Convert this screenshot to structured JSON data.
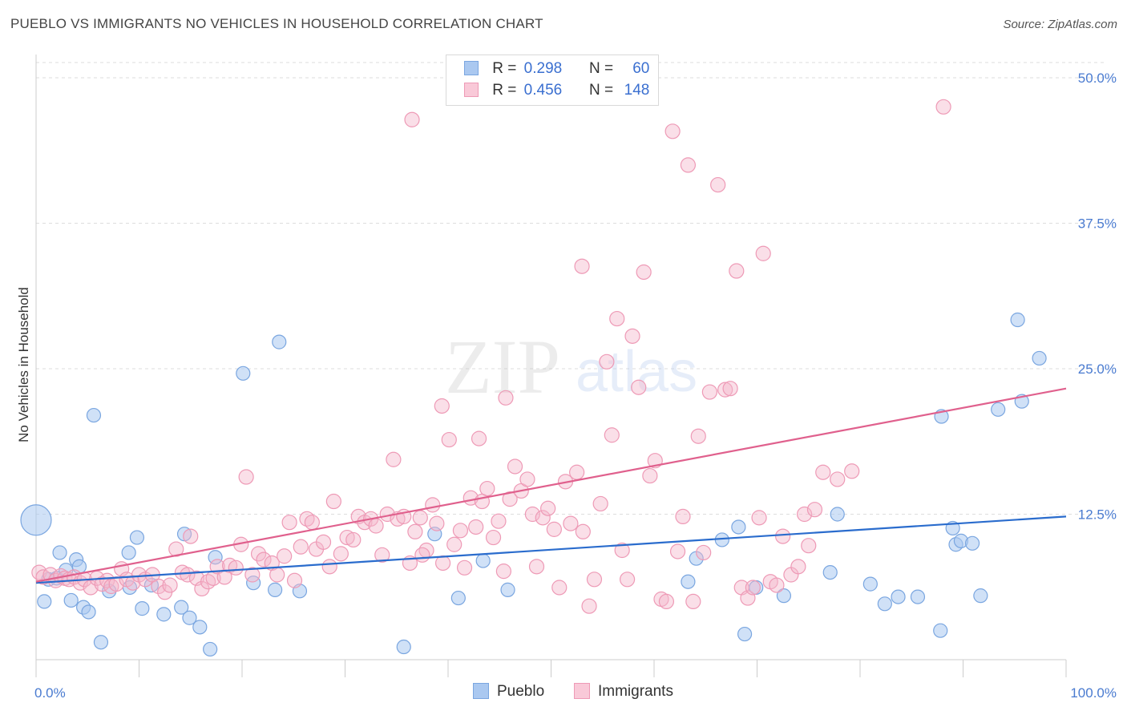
{
  "title": "PUEBLO VS IMMIGRANTS NO VEHICLES IN HOUSEHOLD CORRELATION CHART",
  "source": "Source: ZipAtlas.com",
  "legend": {
    "row1": {
      "r_label": "R =",
      "r_value": "0.298",
      "n_label": "N =",
      "n_value": "60"
    },
    "row2": {
      "r_label": "R =",
      "r_value": "0.456",
      "n_label": "N =",
      "n_value": "148"
    }
  },
  "colors": {
    "pueblo_fill": "#aac8f0",
    "pueblo_stroke": "#7aa6e0",
    "pueblo_line": "#2a6ccd",
    "immigrants_fill": "#f5b8cc",
    "immigrants_stroke": "#ee9ab6",
    "immigrants_line": "#e0608d",
    "tick_text": "#4a7bd0",
    "grid": "#dddddd"
  },
  "chart_data": {
    "type": "scatter",
    "title": "PUEBLO VS IMMIGRANTS NO VEHICLES IN HOUSEHOLD CORRELATION CHART",
    "xlabel": "",
    "ylabel": "No Vehicles in Household",
    "xlim": [
      0,
      100
    ],
    "ylim": [
      0,
      52.5
    ],
    "x_tick_labels": [
      "0.0%",
      "100.0%"
    ],
    "y_ticks": [
      12.5,
      25.0,
      37.5,
      50.0
    ],
    "y_tick_labels": [
      "12.5%",
      "25.0%",
      "37.5%",
      "50.0%"
    ],
    "grid": true,
    "legend_position": "top-center / bottom",
    "series": [
      {
        "name": "Pueblo",
        "trend": {
          "x": [
            0,
            100
          ],
          "y": [
            6.6,
            12.3
          ]
        },
        "points": [
          [
            0.0,
            12.0
          ],
          [
            0.8,
            5.0
          ],
          [
            1.2,
            6.9
          ],
          [
            2.0,
            7.0
          ],
          [
            2.3,
            9.2
          ],
          [
            2.9,
            7.7
          ],
          [
            3.4,
            5.1
          ],
          [
            3.9,
            8.6
          ],
          [
            4.2,
            8.0
          ],
          [
            4.6,
            4.5
          ],
          [
            5.1,
            4.1
          ],
          [
            5.6,
            21.0
          ],
          [
            6.3,
            1.5
          ],
          [
            7.1,
            5.9
          ],
          [
            9.0,
            9.2
          ],
          [
            9.1,
            6.2
          ],
          [
            9.8,
            10.5
          ],
          [
            10.3,
            4.4
          ],
          [
            11.2,
            6.4
          ],
          [
            12.4,
            3.9
          ],
          [
            14.1,
            4.5
          ],
          [
            14.4,
            10.8
          ],
          [
            14.9,
            3.6
          ],
          [
            15.9,
            2.8
          ],
          [
            16.9,
            0.9
          ],
          [
            17.4,
            8.8
          ],
          [
            20.1,
            24.6
          ],
          [
            21.1,
            6.6
          ],
          [
            23.2,
            6.0
          ],
          [
            23.6,
            27.3
          ],
          [
            25.6,
            5.9
          ],
          [
            35.7,
            1.1
          ],
          [
            38.7,
            10.8
          ],
          [
            41.0,
            5.3
          ],
          [
            43.4,
            8.5
          ],
          [
            45.8,
            6.0
          ],
          [
            63.3,
            6.7
          ],
          [
            64.1,
            8.7
          ],
          [
            66.6,
            10.3
          ],
          [
            68.2,
            11.4
          ],
          [
            68.8,
            2.2
          ],
          [
            69.9,
            6.2
          ],
          [
            72.6,
            5.5
          ],
          [
            77.8,
            12.5
          ],
          [
            77.1,
            7.5
          ],
          [
            81.0,
            6.5
          ],
          [
            82.4,
            4.8
          ],
          [
            83.7,
            5.4
          ],
          [
            85.6,
            5.4
          ],
          [
            87.8,
            2.5
          ],
          [
            87.9,
            20.9
          ],
          [
            89.0,
            11.3
          ],
          [
            89.3,
            9.9
          ],
          [
            89.8,
            10.2
          ],
          [
            90.9,
            10.0
          ],
          [
            91.7,
            5.5
          ],
          [
            93.4,
            21.5
          ],
          [
            95.3,
            29.2
          ],
          [
            95.7,
            22.2
          ],
          [
            97.4,
            25.9
          ]
        ]
      },
      {
        "name": "Immigrants",
        "trend": {
          "x": [
            0,
            100
          ],
          "y": [
            6.7,
            23.3
          ]
        },
        "points": [
          [
            0.3,
            7.5
          ],
          [
            0.7,
            7.1
          ],
          [
            1.4,
            7.3
          ],
          [
            1.9,
            6.8
          ],
          [
            2.4,
            7.2
          ],
          [
            2.8,
            7.0
          ],
          [
            3.2,
            6.9
          ],
          [
            3.7,
            7.1
          ],
          [
            4.3,
            6.6
          ],
          [
            4.7,
            6.9
          ],
          [
            5.3,
            6.2
          ],
          [
            5.9,
            7.0
          ],
          [
            6.4,
            6.5
          ],
          [
            6.9,
            6.8
          ],
          [
            7.3,
            6.3
          ],
          [
            7.8,
            6.5
          ],
          [
            8.3,
            7.8
          ],
          [
            8.8,
            6.9
          ],
          [
            9.4,
            6.6
          ],
          [
            10.0,
            7.3
          ],
          [
            10.6,
            6.9
          ],
          [
            11.3,
            7.3
          ],
          [
            11.9,
            6.3
          ],
          [
            12.5,
            5.8
          ],
          [
            13.0,
            6.4
          ],
          [
            13.6,
            9.5
          ],
          [
            14.2,
            7.5
          ],
          [
            14.7,
            7.3
          ],
          [
            15.0,
            10.6
          ],
          [
            15.6,
            7.0
          ],
          [
            16.1,
            6.1
          ],
          [
            16.7,
            6.7
          ],
          [
            17.2,
            7.0
          ],
          [
            17.6,
            8.0
          ],
          [
            18.3,
            7.1
          ],
          [
            18.8,
            8.1
          ],
          [
            19.4,
            7.9
          ],
          [
            19.9,
            9.9
          ],
          [
            20.4,
            15.7
          ],
          [
            21.0,
            7.3
          ],
          [
            21.6,
            9.1
          ],
          [
            22.1,
            8.6
          ],
          [
            22.9,
            8.3
          ],
          [
            23.4,
            7.3
          ],
          [
            24.1,
            8.9
          ],
          [
            24.6,
            11.8
          ],
          [
            25.1,
            6.8
          ],
          [
            25.7,
            9.7
          ],
          [
            26.3,
            12.1
          ],
          [
            26.8,
            11.8
          ],
          [
            27.2,
            9.5
          ],
          [
            27.9,
            10.1
          ],
          [
            28.5,
            8.0
          ],
          [
            28.9,
            13.6
          ],
          [
            29.6,
            9.1
          ],
          [
            30.2,
            10.5
          ],
          [
            30.8,
            10.3
          ],
          [
            31.3,
            12.3
          ],
          [
            31.9,
            11.8
          ],
          [
            32.5,
            12.1
          ],
          [
            33.0,
            11.5
          ],
          [
            33.6,
            9.0
          ],
          [
            34.1,
            12.5
          ],
          [
            34.7,
            17.2
          ],
          [
            35.1,
            12.1
          ],
          [
            35.7,
            12.3
          ],
          [
            36.3,
            8.3
          ],
          [
            36.8,
            11.0
          ],
          [
            37.3,
            12.2
          ],
          [
            37.9,
            9.4
          ],
          [
            38.5,
            13.3
          ],
          [
            38.9,
            11.7
          ],
          [
            39.5,
            8.3
          ],
          [
            40.1,
            18.9
          ],
          [
            40.6,
            9.9
          ],
          [
            41.2,
            11.1
          ],
          [
            41.6,
            7.9
          ],
          [
            42.2,
            13.9
          ],
          [
            42.7,
            11.4
          ],
          [
            43.3,
            13.6
          ],
          [
            43.8,
            14.7
          ],
          [
            44.4,
            10.5
          ],
          [
            44.9,
            11.9
          ],
          [
            45.4,
            7.6
          ],
          [
            46.0,
            13.8
          ],
          [
            46.5,
            16.6
          ],
          [
            47.1,
            14.5
          ],
          [
            47.7,
            15.5
          ],
          [
            48.2,
            12.5
          ],
          [
            48.6,
            8.0
          ],
          [
            49.2,
            12.2
          ],
          [
            49.7,
            13.0
          ],
          [
            50.3,
            11.2
          ],
          [
            50.8,
            6.2
          ],
          [
            51.4,
            15.3
          ],
          [
            51.9,
            11.7
          ],
          [
            52.5,
            16.1
          ],
          [
            53.1,
            11.0
          ],
          [
            53.7,
            4.6
          ],
          [
            54.2,
            6.9
          ],
          [
            54.8,
            13.4
          ],
          [
            55.4,
            25.6
          ],
          [
            55.9,
            19.3
          ],
          [
            56.4,
            29.3
          ],
          [
            56.9,
            9.4
          ],
          [
            57.4,
            6.9
          ],
          [
            57.9,
            27.8
          ],
          [
            58.5,
            23.4
          ],
          [
            59.0,
            33.3
          ],
          [
            59.6,
            15.8
          ],
          [
            60.1,
            17.1
          ],
          [
            60.7,
            5.2
          ],
          [
            61.2,
            5.0
          ],
          [
            61.8,
            45.4
          ],
          [
            62.3,
            9.3
          ],
          [
            62.8,
            12.3
          ],
          [
            63.3,
            42.5
          ],
          [
            63.8,
            5.0
          ],
          [
            64.3,
            19.2
          ],
          [
            64.8,
            9.2
          ],
          [
            65.4,
            23.0
          ],
          [
            66.2,
            40.8
          ],
          [
            66.9,
            23.2
          ],
          [
            67.4,
            23.3
          ],
          [
            68.0,
            33.4
          ],
          [
            68.5,
            6.2
          ],
          [
            69.1,
            5.3
          ],
          [
            69.6,
            6.2
          ],
          [
            70.2,
            12.2
          ],
          [
            70.6,
            34.9
          ],
          [
            71.3,
            6.7
          ],
          [
            71.9,
            6.4
          ],
          [
            72.5,
            10.6
          ],
          [
            73.3,
            7.3
          ],
          [
            74.0,
            8.0
          ],
          [
            74.6,
            12.5
          ],
          [
            75.0,
            9.8
          ],
          [
            75.6,
            12.9
          ],
          [
            76.4,
            16.1
          ],
          [
            77.8,
            15.5
          ],
          [
            79.2,
            16.2
          ],
          [
            36.5,
            46.4
          ],
          [
            88.1,
            47.5
          ],
          [
            53.0,
            33.8
          ],
          [
            39.4,
            21.8
          ],
          [
            43.0,
            19.0
          ],
          [
            45.6,
            22.5
          ],
          [
            37.5,
            9.0
          ]
        ]
      }
    ]
  },
  "bottom_legend": [
    "Pueblo",
    "Immigrants"
  ],
  "watermark": {
    "zip": "ZIP",
    "atlas": "atlas"
  }
}
